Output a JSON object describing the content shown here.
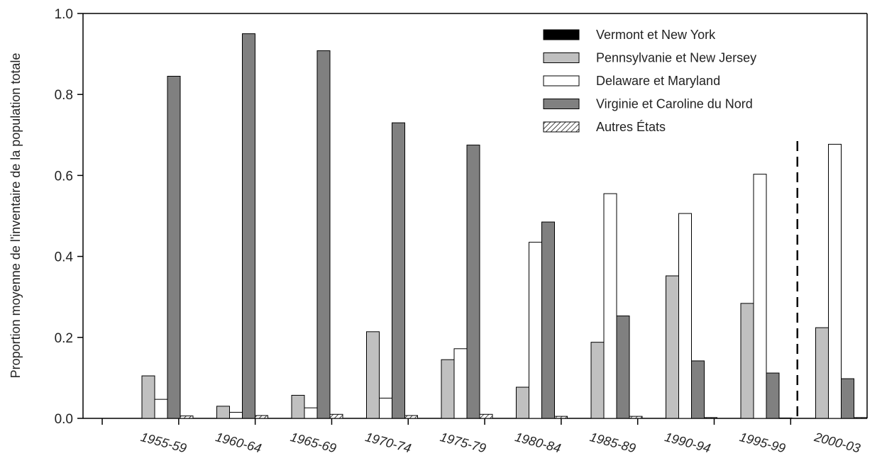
{
  "chart_data": {
    "type": "bar",
    "title": "",
    "xlabel": "",
    "ylabel": "Proportion moyenne de l'inventaire de la population totale",
    "ylim": [
      0,
      1.0
    ],
    "yticks": [
      "0.0",
      "0.2",
      "0.4",
      "0.6",
      "0.8",
      "1.0"
    ],
    "grid": false,
    "legend_position": "top-right",
    "categories": [
      "1955-59",
      "1960-64",
      "1965-69",
      "1970-74",
      "1975-79",
      "1980-84",
      "1985-89",
      "1990-94",
      "1995-99",
      "2000-03"
    ],
    "divider_before_category": "2000-03",
    "series": [
      {
        "name": "Vermont et New York",
        "color": "#000000",
        "pattern": "solid",
        "values": [
          0,
          0,
          0,
          0,
          0,
          0,
          0,
          0,
          0,
          0
        ]
      },
      {
        "name": "Pennsylvanie et New Jersey",
        "color": "#c0c0c0",
        "pattern": "solid",
        "values": [
          0.105,
          0.03,
          0.057,
          0.214,
          0.145,
          0.077,
          0.188,
          0.352,
          0.284,
          0.224
        ]
      },
      {
        "name": "Delaware et Maryland",
        "color": "#ffffff",
        "pattern": "solid",
        "values": [
          0.047,
          0.015,
          0.026,
          0.05,
          0.172,
          0.435,
          0.555,
          0.506,
          0.603,
          0.677
        ]
      },
      {
        "name": "Virginie et Caroline du Nord",
        "color": "#808080",
        "pattern": "solid",
        "values": [
          0.845,
          0.95,
          0.908,
          0.73,
          0.675,
          0.485,
          0.253,
          0.142,
          0.112,
          0.098
        ]
      },
      {
        "name": "Autres États",
        "color": "#ffffff",
        "pattern": "hatch",
        "values": [
          0.006,
          0.007,
          0.01,
          0.007,
          0.01,
          0.005,
          0.005,
          0.002,
          0.001,
          0.002
        ]
      }
    ]
  }
}
